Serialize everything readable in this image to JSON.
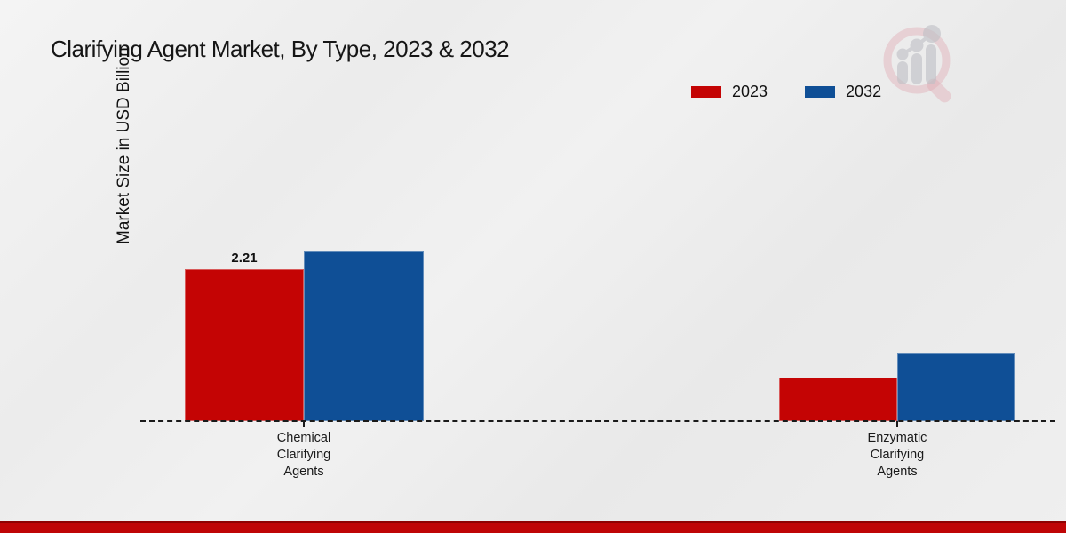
{
  "title": "Clarifying Agent Market, By Type, 2023 & 2032",
  "y_axis_label": "Market Size in USD Billion",
  "legend": {
    "position": "top-right",
    "items": [
      {
        "label": "2023",
        "color": "#c40404"
      },
      {
        "label": "2032",
        "color": "#0f4f96"
      }
    ]
  },
  "icons": {
    "logo": "magnifier-bar-chart-logo",
    "logo_ring_color": "#dfaab2",
    "logo_bars_color": "#bfc0c6"
  },
  "colors": {
    "series_2023": "#c40404",
    "series_2032": "#0f4f96",
    "bottom_strip": "#bf0506",
    "background": "#ededed",
    "axis_dash": "#1a1a1a"
  },
  "chart_data": {
    "type": "bar",
    "title": "Clarifying Agent Market, By Type, 2023 & 2032",
    "xlabel": "",
    "ylabel": "Market Size in USD Billion",
    "grid": false,
    "legend_position": "top-right",
    "ylim": [
      0,
      2.6
    ],
    "categories": [
      "Chemical\nClarifying\nAgents",
      "Enzymatic\nClarifying\nAgents"
    ],
    "series": [
      {
        "name": "2023",
        "color": "#c40404",
        "values": [
          2.21,
          0.63
        ]
      },
      {
        "name": "2032",
        "color": "#0f4f96",
        "values": [
          2.47,
          1.0
        ]
      }
    ],
    "value_label": {
      "text": "2.21",
      "series": "2023",
      "category": "Chemical Clarifying Agents"
    }
  }
}
